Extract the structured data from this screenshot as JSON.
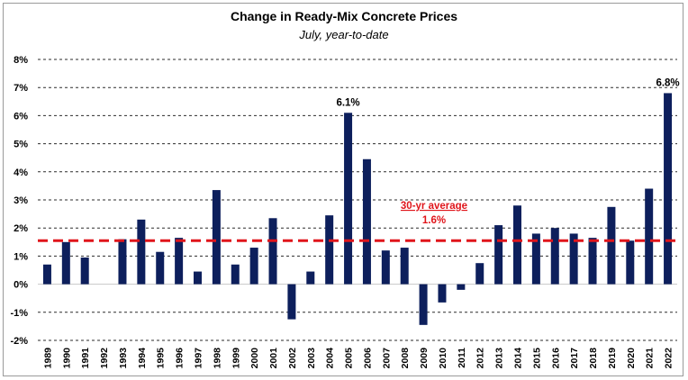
{
  "chart_data": {
    "type": "bar",
    "title": "Change in Ready-Mix Concrete Prices",
    "subtitle": "July, year-to-date",
    "xlabel": "",
    "ylabel": "",
    "ylim": [
      -2,
      8
    ],
    "y_ticks": [
      "8%",
      "7%",
      "6%",
      "5%",
      "4%",
      "3%",
      "2%",
      "1%",
      "0%",
      "-1%",
      "-2%"
    ],
    "grid": "horizontal dashed",
    "bar_color": "#0d1f5c",
    "categories": [
      "1989",
      "1990",
      "1991",
      "1992",
      "1993",
      "1994",
      "1995",
      "1996",
      "1997",
      "1998",
      "1999",
      "2000",
      "2001",
      "2002",
      "2003",
      "2004",
      "2005",
      "2006",
      "2007",
      "2008",
      "2009",
      "2010",
      "2011",
      "2012",
      "2013",
      "2014",
      "2015",
      "2016",
      "2017",
      "2018",
      "2019",
      "2020",
      "2021",
      "2022"
    ],
    "values": [
      0.7,
      1.5,
      0.95,
      0.0,
      1.6,
      2.3,
      1.15,
      1.65,
      0.45,
      3.35,
      0.7,
      1.3,
      2.35,
      -1.25,
      0.45,
      2.45,
      6.1,
      4.45,
      1.2,
      1.3,
      -1.45,
      -0.65,
      -0.2,
      0.75,
      2.1,
      2.8,
      1.8,
      2.0,
      1.8,
      1.65,
      2.75,
      1.55,
      3.4,
      6.8
    ],
    "data_labels": [
      {
        "category": "2005",
        "text": "6.1%"
      },
      {
        "category": "2022",
        "text": "6.8%"
      }
    ],
    "average_line": {
      "value": 1.55,
      "label_line1": "30-yr average",
      "label_line2": "1.6%",
      "color": "#e0151b"
    }
  }
}
